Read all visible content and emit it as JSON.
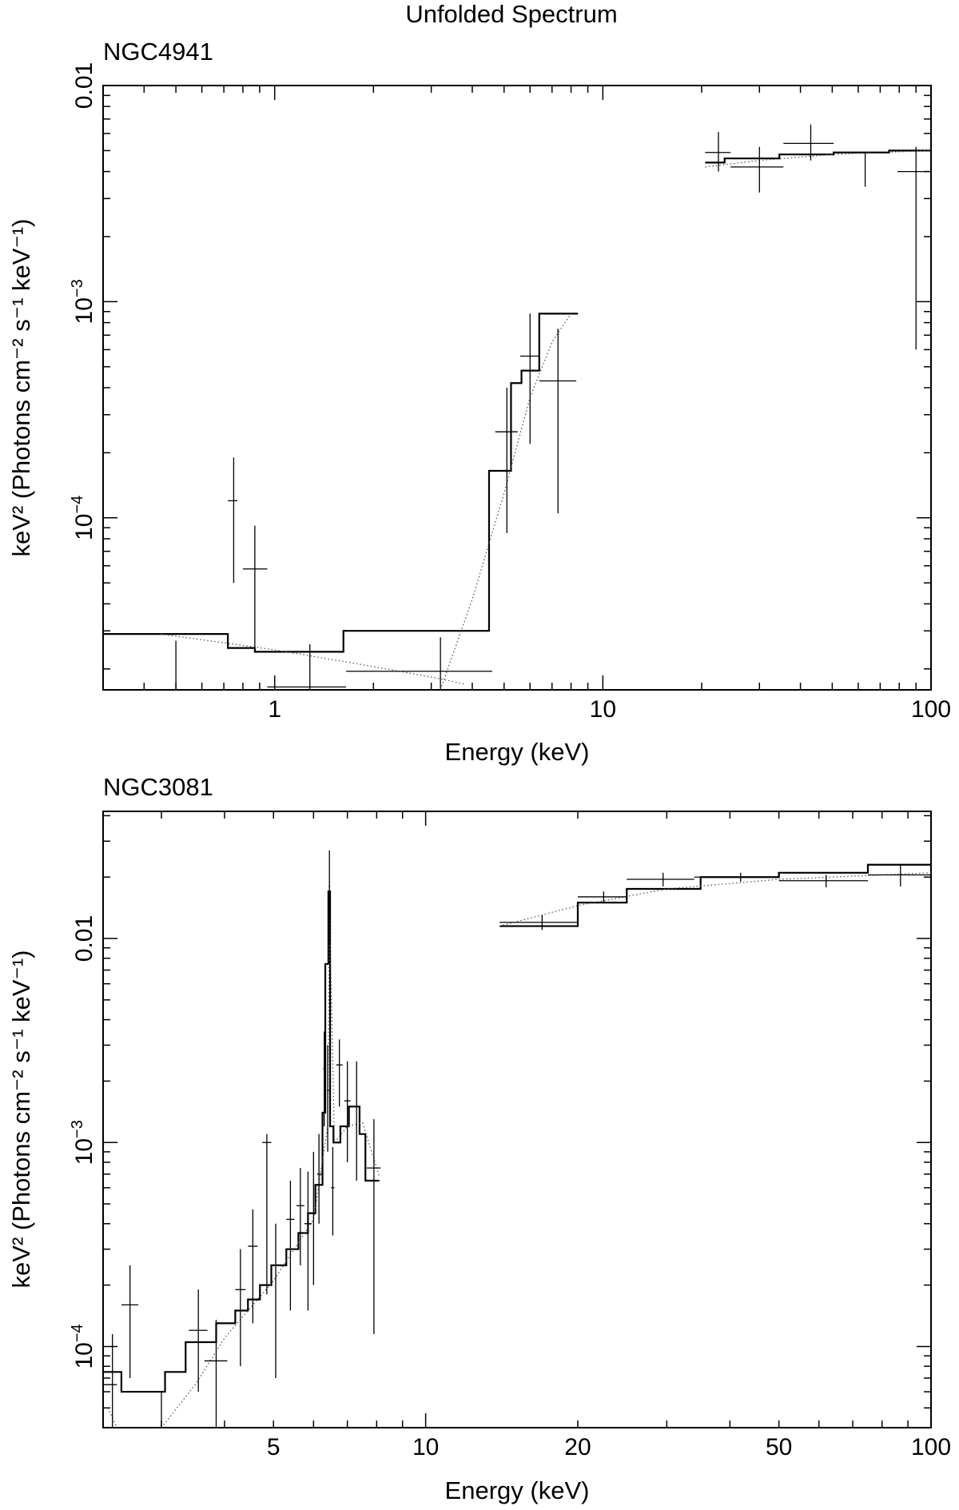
{
  "chart_data": [
    {
      "type": "line",
      "figure_title": "Unfolded Spectrum",
      "title": "NGC4941",
      "xlabel": "Energy (keV)",
      "ylabel": "keV² (Photons cm⁻² s⁻¹ keV⁻¹)",
      "xscale": "log",
      "yscale": "log",
      "xlim": [
        0.3,
        100
      ],
      "ylim": [
        1.6e-05,
        0.01
      ],
      "x_tick_labels": [
        {
          "value": 1,
          "label": "1"
        },
        {
          "value": 10,
          "label": "10"
        },
        {
          "value": 100,
          "label": "100"
        }
      ],
      "y_tick_labels": [
        {
          "value": 0.0001,
          "base": "10",
          "exp": "−4"
        },
        {
          "value": 0.001,
          "base": "10",
          "exp": "−3"
        },
        {
          "value": 0.01,
          "base": "",
          "exp": "",
          "text": "0.01"
        }
      ],
      "series": [
        {
          "name": "model (histogram)",
          "style": "solid-step",
          "segments": [
            {
              "bins": [
                [
                  0.3,
                  0.72,
                  2.9e-05
                ],
                [
                  0.72,
                  0.87,
                  2.5e-05
                ],
                [
                  0.87,
                  1.62,
                  2.4e-05
                ],
                [
                  1.62,
                  4.5,
                  3e-05
                ],
                [
                  4.5,
                  5.25,
                  0.000165
                ],
                [
                  5.25,
                  5.65,
                  0.00042
                ],
                [
                  5.65,
                  6.4,
                  0.00048
                ],
                [
                  6.4,
                  8.4,
                  0.00088
                ]
              ]
            },
            {
              "bins": [
                [
                  20.5,
                  23.5,
                  0.0044
                ],
                [
                  23.5,
                  34.5,
                  0.0046
                ],
                [
                  34.5,
                  50.5,
                  0.0048
                ],
                [
                  50.5,
                  74.5,
                  0.0049
                ],
                [
                  74.5,
                  100,
                  0.005
                ]
              ]
            }
          ]
        },
        {
          "name": "model component",
          "style": "dotted",
          "segments": [
            {
              "points": [
                [
                  0.45,
                  2.9e-05
                ],
                [
                  1.0,
                  2.45e-05
                ],
                [
                  2.0,
                  2.05e-05
                ],
                [
                  3.2,
                  1.8e-05
                ],
                [
                  3.8,
                  1.7e-05
                ]
              ]
            },
            {
              "points": [
                [
                  3.2,
                  1.6e-05
                ],
                [
                  4.0,
                  4.2e-05
                ],
                [
                  5.0,
                  0.00013
                ],
                [
                  6.0,
                  0.00036
                ],
                [
                  7.0,
                  0.00065
                ],
                [
                  8.0,
                  0.00088
                ]
              ]
            },
            {
              "points": [
                [
                  20.5,
                  0.0042
                ],
                [
                  30,
                  0.0045
                ],
                [
                  50,
                  0.0048
                ],
                [
                  100,
                  0.005
                ]
              ]
            }
          ]
        },
        {
          "name": "data",
          "style": "error-cross",
          "points": [
            {
              "x": 0.5,
              "xlo": 0.5,
              "xhi": 0.5,
              "y": 1.7e-05,
              "ylo": 1.6e-05,
              "yhi": 2.7e-05
            },
            {
              "x": 0.75,
              "xlo": 0.72,
              "xhi": 0.77,
              "y": 0.00012,
              "ylo": 5e-05,
              "yhi": 0.00019
            },
            {
              "x": 0.87,
              "xlo": 0.8,
              "xhi": 0.95,
              "y": 5.8e-05,
              "ylo": 2.5e-05,
              "yhi": 9.2e-05
            },
            {
              "x": 1.28,
              "xlo": 0.95,
              "xhi": 1.65,
              "y": 1.65e-05,
              "ylo": 1.6e-05,
              "yhi": 2.6e-05
            },
            {
              "x": 3.2,
              "xlo": 1.65,
              "xhi": 4.6,
              "y": 1.95e-05,
              "ylo": 1.6e-05,
              "yhi": 2.8e-05
            },
            {
              "x": 5.1,
              "xlo": 4.7,
              "xhi": 5.5,
              "y": 0.00025,
              "ylo": 8.5e-05,
              "yhi": 0.0004
            },
            {
              "x": 6.0,
              "xlo": 5.6,
              "xhi": 6.4,
              "y": 0.00056,
              "ylo": 0.00022,
              "yhi": 0.00088
            },
            {
              "x": 7.3,
              "xlo": 6.4,
              "xhi": 8.3,
              "y": 0.00043,
              "ylo": 0.000105,
              "yhi": 0.00075
            },
            {
              "x": 22.5,
              "xlo": 20.5,
              "xhi": 24.5,
              "y": 0.0049,
              "ylo": 0.004,
              "yhi": 0.0061
            },
            {
              "x": 30,
              "xlo": 24.5,
              "xhi": 35.5,
              "y": 0.0042,
              "ylo": 0.0032,
              "yhi": 0.0052
            },
            {
              "x": 43,
              "xlo": 35.5,
              "xhi": 50.5,
              "y": 0.0054,
              "ylo": 0.0045,
              "yhi": 0.0066
            },
            {
              "x": 63,
              "xlo": 50.5,
              "xhi": 74.5,
              "y": 0.0049,
              "ylo": 0.0034,
              "yhi": 0.0049
            },
            {
              "x": 90,
              "xlo": 79,
              "xhi": 100,
              "y": 0.004,
              "ylo": 0.0006,
              "yhi": 0.0052
            }
          ]
        }
      ]
    },
    {
      "type": "line",
      "title": "NGC3081",
      "xlabel": "Energy (keV)",
      "ylabel": "keV² (Photons cm⁻² s⁻¹ keV⁻¹)",
      "xscale": "log",
      "yscale": "log",
      "xlim": [
        2.3,
        100
      ],
      "ylim": [
        4e-05,
        0.042
      ],
      "x_tick_labels": [
        {
          "value": 5,
          "label": "5"
        },
        {
          "value": 10,
          "label": "10"
        },
        {
          "value": 20,
          "label": "20"
        },
        {
          "value": 50,
          "label": "50"
        },
        {
          "value": 100,
          "label": "100"
        }
      ],
      "y_tick_labels": [
        {
          "value": 0.0001,
          "base": "10",
          "exp": "−4"
        },
        {
          "value": 0.001,
          "base": "10",
          "exp": "−3"
        },
        {
          "value": 0.01,
          "base": "",
          "exp": "",
          "text": "0.01"
        }
      ],
      "series": [
        {
          "name": "model (histogram)",
          "style": "solid-step",
          "segments": [
            {
              "bins": [
                [
                  2.3,
                  2.5,
                  7.5e-05
                ],
                [
                  2.5,
                  3.05,
                  6e-05
                ],
                [
                  3.05,
                  3.35,
                  7.5e-05
                ],
                [
                  3.35,
                  3.85,
                  0.000105
                ],
                [
                  3.85,
                  4.2,
                  0.00013
                ],
                [
                  4.2,
                  4.45,
                  0.00015
                ],
                [
                  4.45,
                  4.7,
                  0.00017
                ],
                [
                  4.7,
                  4.95,
                  0.0002
                ],
                [
                  4.95,
                  5.3,
                  0.00025
                ],
                [
                  5.3,
                  5.6,
                  0.0003
                ],
                [
                  5.6,
                  5.85,
                  0.00036
                ],
                [
                  5.85,
                  6.05,
                  0.00045
                ],
                [
                  6.05,
                  6.25,
                  0.00062
                ],
                [
                  6.25,
                  6.33,
                  0.0014
                ],
                [
                  6.33,
                  6.42,
                  0.0075
                ],
                [
                  6.42,
                  6.47,
                  0.017
                ],
                [
                  6.47,
                  6.57,
                  0.0012
                ],
                [
                  6.57,
                  6.78,
                  0.001
                ],
                [
                  6.78,
                  7.05,
                  0.0012
                ],
                [
                  7.05,
                  7.4,
                  0.0015
                ],
                [
                  7.4,
                  7.6,
                  0.0011
                ],
                [
                  7.6,
                  8.1,
                  0.00065
                ]
              ]
            },
            {
              "bins": [
                [
                  14,
                  20,
                  0.0115
                ],
                [
                  20,
                  25,
                  0.015
                ],
                [
                  25,
                  35,
                  0.0175
                ],
                [
                  35,
                  50,
                  0.02
                ],
                [
                  50,
                  75,
                  0.021
                ],
                [
                  75,
                  100,
                  0.023
                ]
              ]
            }
          ]
        },
        {
          "name": "model component",
          "style": "dotted",
          "segments": [
            {
              "points": [
                [
                  2.35,
                  5e-05
                ],
                [
                  2.45,
                  4e-05
                ]
              ]
            },
            {
              "points": [
                [
                  3.0,
                  4e-05
                ],
                [
                  3.5,
                  6.5e-05
                ],
                [
                  4.0,
                  0.00011
                ],
                [
                  5.0,
                  0.00021
                ],
                [
                  6.0,
                  0.00042
                ],
                [
                  6.4,
                  0.0012
                ],
                [
                  6.45,
                  0.015
                ],
                [
                  6.6,
                  0.001
                ],
                [
                  7.0,
                  0.0012
                ],
                [
                  7.5,
                  0.00125
                ],
                [
                  8.1,
                  0.00068
                ]
              ]
            },
            {
              "points": [
                [
                  14,
                  0.0115
                ],
                [
                  20,
                  0.0145
                ],
                [
                  30,
                  0.0175
                ],
                [
                  50,
                  0.0195
                ],
                [
                  100,
                  0.021
                ]
              ]
            }
          ]
        },
        {
          "name": "data",
          "style": "error-cross",
          "points": [
            {
              "x": 2.4,
              "xlo": 2.3,
              "xhi": 2.45,
              "y": 6.5e-05,
              "ylo": 4e-05,
              "yhi": 0.000115
            },
            {
              "x": 2.6,
              "xlo": 2.5,
              "xhi": 2.7,
              "y": 0.00016,
              "ylo": 7e-05,
              "yhi": 0.00025
            },
            {
              "x": 3.0,
              "xlo": 3.0,
              "xhi": 3.0,
              "y": 5e-05,
              "ylo": 4e-05,
              "yhi": 6e-05
            },
            {
              "x": 3.55,
              "xlo": 3.4,
              "xhi": 3.7,
              "y": 0.00012,
              "ylo": 6e-05,
              "yhi": 0.00019
            },
            {
              "x": 3.85,
              "xlo": 3.65,
              "xhi": 4.05,
              "y": 8.5e-05,
              "ylo": 4e-05,
              "yhi": 0.000135
            },
            {
              "x": 4.3,
              "xlo": 4.2,
              "xhi": 4.4,
              "y": 0.00019,
              "ylo": 8e-05,
              "yhi": 0.0003
            },
            {
              "x": 4.55,
              "xlo": 4.45,
              "xhi": 4.65,
              "y": 0.00031,
              "ylo": 0.00013,
              "yhi": 0.00047
            },
            {
              "x": 4.85,
              "xlo": 4.75,
              "xhi": 4.95,
              "y": 0.001,
              "ylo": 0.00018,
              "yhi": 0.0011
            },
            {
              "x": 5.05,
              "xlo": 4.95,
              "xhi": 5.15,
              "y": 0.00025,
              "ylo": 7e-05,
              "yhi": 0.0004
            },
            {
              "x": 5.4,
              "xlo": 5.3,
              "xhi": 5.5,
              "y": 0.00042,
              "ylo": 0.00015,
              "yhi": 0.00065
            },
            {
              "x": 5.65,
              "xlo": 5.55,
              "xhi": 5.75,
              "y": 0.00049,
              "ylo": 0.00025,
              "yhi": 0.00075
            },
            {
              "x": 5.85,
              "xlo": 5.75,
              "xhi": 5.95,
              "y": 0.0004,
              "ylo": 0.00015,
              "yhi": 0.00072
            },
            {
              "x": 6.0,
              "xlo": 5.95,
              "xhi": 6.05,
              "y": 0.00045,
              "ylo": 0.0002,
              "yhi": 0.0009
            },
            {
              "x": 6.15,
              "xlo": 6.1,
              "xhi": 6.25,
              "y": 0.0007,
              "ylo": 0.0004,
              "yhi": 0.0011
            },
            {
              "x": 6.3,
              "xlo": 6.27,
              "xhi": 6.35,
              "y": 0.0023,
              "ylo": 0.0012,
              "yhi": 0.0035
            },
            {
              "x": 6.4,
              "xlo": 6.38,
              "xhi": 6.44,
              "y": 0.0018,
              "ylo": 0.0009,
              "yhi": 0.003
            },
            {
              "x": 6.45,
              "xlo": 6.43,
              "xhi": 6.47,
              "y": 0.018,
              "ylo": 0.0095,
              "yhi": 0.027
            },
            {
              "x": 6.55,
              "xlo": 6.5,
              "xhi": 6.6,
              "y": 0.0006,
              "ylo": 0.00035,
              "yhi": 0.00095
            },
            {
              "x": 6.75,
              "xlo": 6.65,
              "xhi": 6.85,
              "y": 0.0024,
              "ylo": 0.0015,
              "yhi": 0.0032
            },
            {
              "x": 7.0,
              "xlo": 6.9,
              "xhi": 7.1,
              "y": 0.0016,
              "ylo": 0.0008,
              "yhi": 0.0025
            },
            {
              "x": 7.3,
              "xlo": 7.2,
              "xhi": 7.4,
              "y": 0.0015,
              "ylo": 0.00065,
              "yhi": 0.0025
            },
            {
              "x": 7.9,
              "xlo": 7.65,
              "xhi": 8.15,
              "y": 0.00075,
              "ylo": 0.000115,
              "yhi": 0.0013
            },
            {
              "x": 17,
              "xlo": 14,
              "xhi": 20,
              "y": 0.012,
              "ylo": 0.011,
              "yhi": 0.013
            },
            {
              "x": 22.5,
              "xlo": 20,
              "xhi": 25,
              "y": 0.016,
              "ylo": 0.015,
              "yhi": 0.017
            },
            {
              "x": 29.5,
              "xlo": 25,
              "xhi": 34,
              "y": 0.0195,
              "ylo": 0.018,
              "yhi": 0.021
            },
            {
              "x": 42,
              "xlo": 34,
              "xhi": 50,
              "y": 0.02,
              "ylo": 0.019,
              "yhi": 0.021
            },
            {
              "x": 62,
              "xlo": 50,
              "xhi": 75,
              "y": 0.0192,
              "ylo": 0.0178,
              "yhi": 0.0205
            },
            {
              "x": 87,
              "xlo": 75,
              "xhi": 100,
              "y": 0.0205,
              "ylo": 0.018,
              "yhi": 0.023
            }
          ]
        }
      ]
    }
  ]
}
